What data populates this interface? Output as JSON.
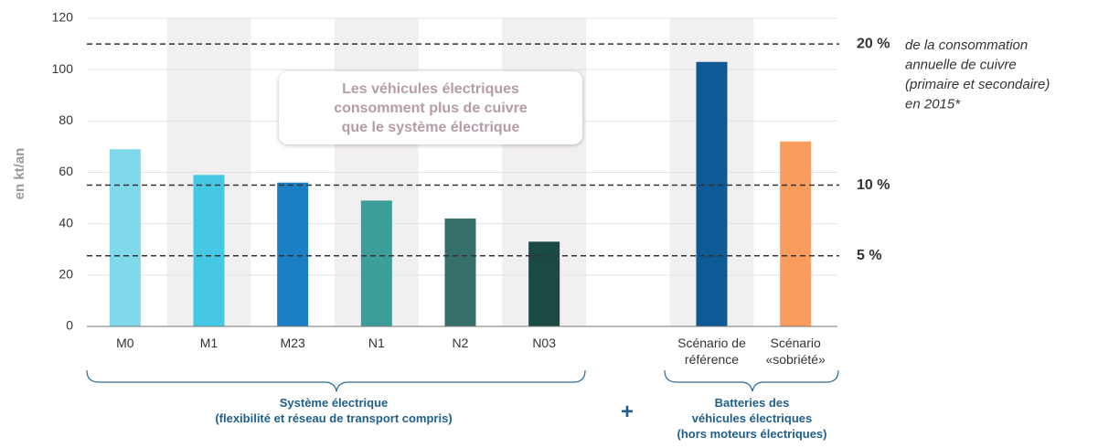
{
  "chart_data": {
    "type": "bar",
    "ylabel": "en kt/an",
    "categories": [
      "M0",
      "M1",
      "M23",
      "N1",
      "N2",
      "N03",
      null,
      "Scénario de référence",
      "Scénario «sobriété»"
    ],
    "values": [
      69,
      59,
      56,
      49,
      42,
      33,
      null,
      103,
      72
    ],
    "colors": [
      "#7fd9eb",
      "#45c8e3",
      "#1a7fc4",
      "#3b9e98",
      "#356f69",
      "#1b4a45",
      null,
      "#0d5a94",
      "#f99c5d"
    ],
    "ylim": [
      0,
      120
    ],
    "yticks": [
      0,
      20,
      40,
      60,
      80,
      100,
      120
    ],
    "grid": true,
    "reference_lines": [
      {
        "value": 110,
        "label": "20 %",
        "note": [
          "de la consommation",
          "annuelle de cuivre",
          "(primaire et secondaire)",
          "en 2015*"
        ]
      },
      {
        "value": 55,
        "label": "10 %"
      },
      {
        "value": 27.5,
        "label": "5 %"
      }
    ],
    "callout": [
      "Les véhicules électriques",
      "consomment plus de cuivre",
      "que le système électrique"
    ],
    "groups": [
      {
        "label": [
          "Système électrique",
          "(flexibilité et réseau de transport compris)"
        ]
      },
      {
        "label": [
          "Batteries des",
          "véhicules électriques",
          "(hors moteurs électriques)"
        ]
      }
    ],
    "group_separator": "+"
  }
}
